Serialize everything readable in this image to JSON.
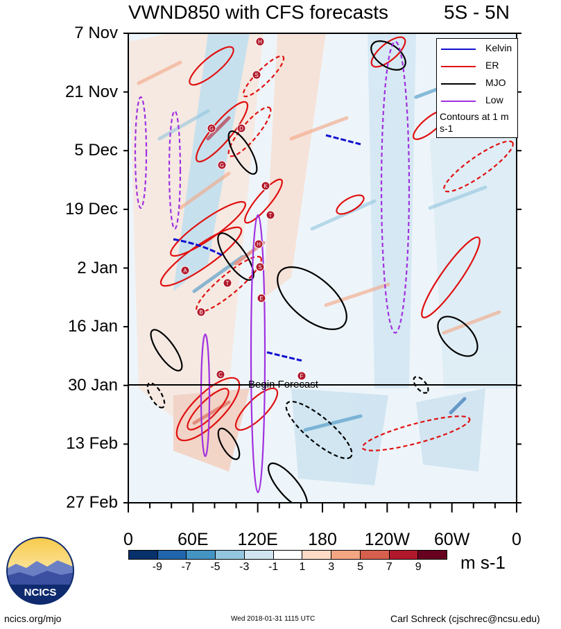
{
  "header": {
    "title": "VWND850 with CFS forecasts",
    "region": "5S - 5N"
  },
  "chart_data": {
    "type": "heatmap",
    "title": "VWND850 with CFS forecasts",
    "subtitle": "5S - 5N",
    "y_ticks": [
      "7 Nov",
      "21 Nov",
      "5 Dec",
      "19 Dec",
      "2 Jan",
      "16 Jan",
      "30 Jan",
      "13 Feb",
      "27 Feb"
    ],
    "x_ticks": [
      "0",
      "60E",
      "120E",
      "180",
      "120W",
      "60W",
      "0"
    ],
    "x_range_deg_east": [
      0,
      360
    ],
    "legend": [
      {
        "name": "Kelvin",
        "color": "#1010d0"
      },
      {
        "name": "ER",
        "color": "#e01010"
      },
      {
        "name": "MJO",
        "color": "#000000"
      },
      {
        "name": "Low",
        "color": "#a030e0"
      }
    ],
    "legend_note": "Contours at 1 m s-1",
    "forecast_marker": {
      "date": "30 Jan",
      "label": "Begin Forecast"
    },
    "colorbar": {
      "units": "m s-1",
      "tick_labels": [
        "-9",
        "-7",
        "-5",
        "-3",
        "-1",
        "1",
        "3",
        "5",
        "7",
        "9"
      ],
      "colors": [
        "#08306b",
        "#2166ac",
        "#4393c3",
        "#92c5de",
        "#d1e5f0",
        "#ffffff",
        "#fddbc7",
        "#f4a582",
        "#d6604d",
        "#b2182b",
        "#67001f"
      ]
    },
    "cyclone_markers": [
      "H",
      "S",
      "G",
      "D",
      "G",
      "K",
      "T",
      "H",
      "S",
      "A",
      "T",
      "E",
      "B",
      "C",
      "F"
    ]
  },
  "footer": {
    "logo_text": "NCICS",
    "url": "ncics.org/mjo",
    "timestamp": "Wed 2018-01-31 1115 UTC",
    "author": "Carl Schreck (cjschrec@ncsu.edu)"
  }
}
